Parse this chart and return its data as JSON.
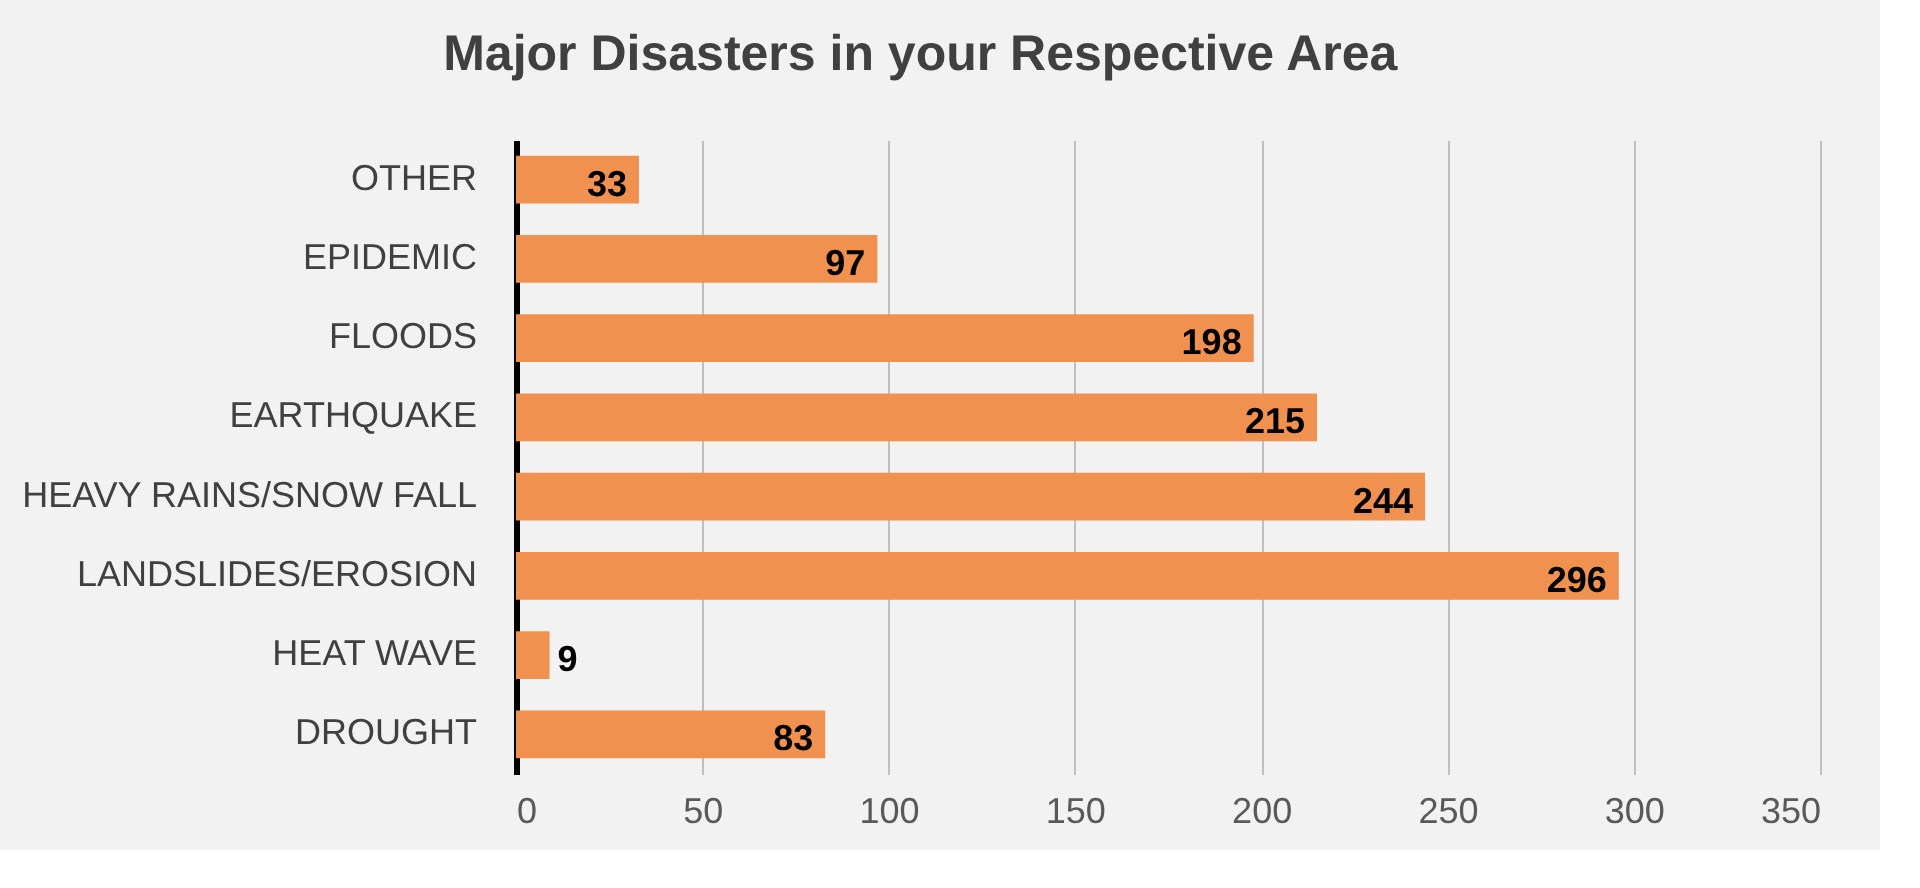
{
  "chart_data": {
    "type": "bar",
    "orientation": "horizontal",
    "title": "Major Disasters in your Respective Area",
    "categories": [
      "OTHER",
      "EPIDEMIC",
      "FLOODS",
      "EARTHQUAKE",
      "HEAVY RAINS/SNOW FALL",
      "LANDSLIDES/EROSION",
      "HEAT WAVE",
      "DROUGHT"
    ],
    "values": [
      33,
      97,
      198,
      215,
      244,
      296,
      9,
      83
    ],
    "color": "#f0914f",
    "xlim": [
      0,
      350
    ],
    "xticks": [
      0,
      50,
      100,
      150,
      200,
      250,
      300,
      350
    ],
    "grid": "x",
    "data_labels": true
  }
}
